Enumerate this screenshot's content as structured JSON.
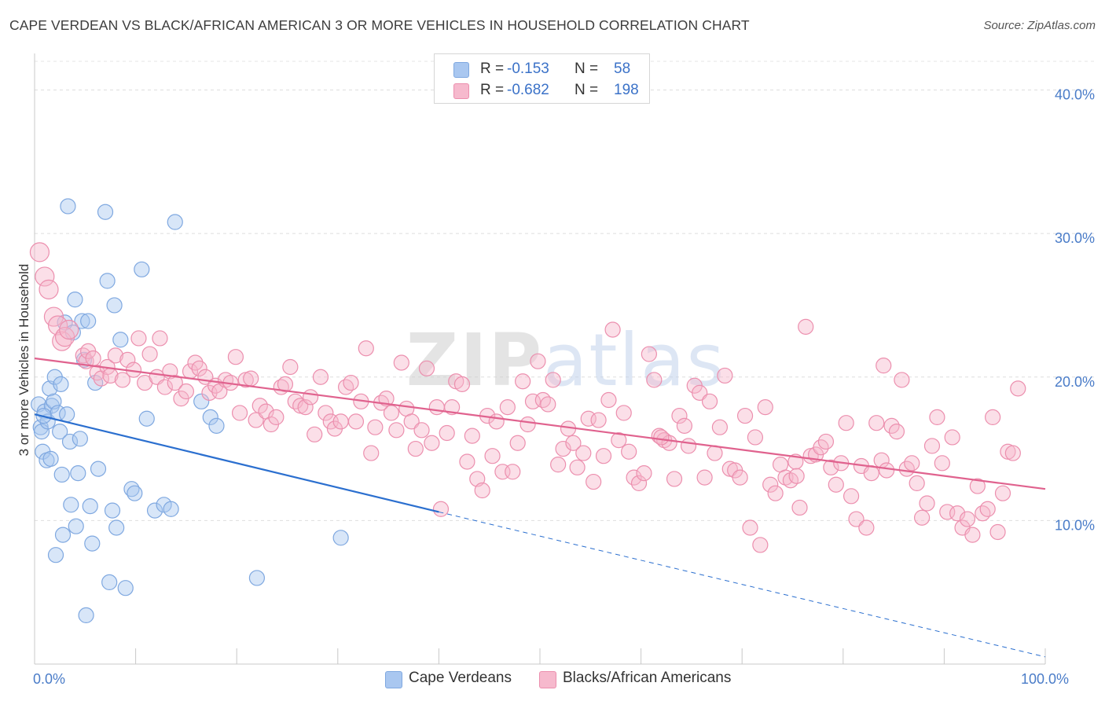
{
  "title": "CAPE VERDEAN VS BLACK/AFRICAN AMERICAN 3 OR MORE VEHICLES IN HOUSEHOLD CORRELATION CHART",
  "source": "Source: ZipAtlas.com",
  "watermark": "ZIPatlas",
  "legend": {
    "rows": [
      {
        "r_label": "R =",
        "r_value": "-0.153",
        "n_label": "N =",
        "n_value": "58",
        "color": "#a9c7f0",
        "border": "#7fa8e0"
      },
      {
        "r_label": "R =",
        "r_value": "-0.682",
        "n_label": "N =",
        "n_value": "198",
        "color": "#f6b9cd",
        "border": "#ec8fae"
      }
    ]
  },
  "bottom_legend": [
    {
      "label": "Cape Verdeans",
      "color": "#a9c7f0",
      "border": "#7fa8e0"
    },
    {
      "label": "Blacks/African Americans",
      "color": "#f6b9cd",
      "border": "#ec8fae"
    }
  ],
  "chart_data": {
    "type": "scatter",
    "xlabel": "",
    "ylabel": "3 or more Vehicles in Household",
    "xlim": [
      0,
      100
    ],
    "ylim": [
      0,
      42
    ],
    "x_tick_labels": [
      {
        "value": 0,
        "label": "0.0%"
      },
      {
        "value": 100,
        "label": "100.0%"
      }
    ],
    "y_tick_labels": [
      {
        "value": 10,
        "label": "10.0%"
      },
      {
        "value": 20,
        "label": "20.0%"
      },
      {
        "value": 30,
        "label": "30.0%"
      },
      {
        "value": 40,
        "label": "40.0%"
      }
    ],
    "grid": true,
    "series": [
      {
        "name": "Cape Verdeans",
        "color": "#a9c7f0",
        "stroke": "#7fa8e0",
        "trend": {
          "x": [
            0,
            40
          ],
          "y": [
            17.4,
            10.6
          ],
          "extend_to": [
            100,
            0.5
          ],
          "color": "#2b6fcf"
        },
        "points": [
          [
            0.4,
            18.1
          ],
          [
            0.6,
            16.5
          ],
          [
            0.7,
            16.2
          ],
          [
            0.8,
            14.8
          ],
          [
            1.0,
            17.6
          ],
          [
            1.2,
            14.2
          ],
          [
            1.3,
            16.9
          ],
          [
            1.5,
            19.2
          ],
          [
            1.6,
            14.3
          ],
          [
            1.7,
            18.0
          ],
          [
            1.9,
            18.3
          ],
          [
            2.0,
            20.0
          ],
          [
            2.1,
            7.6
          ],
          [
            2.3,
            17.5
          ],
          [
            2.5,
            16.2
          ],
          [
            2.6,
            19.5
          ],
          [
            2.7,
            13.2
          ],
          [
            2.8,
            9.0
          ],
          [
            3.0,
            23.8
          ],
          [
            3.2,
            17.4
          ],
          [
            3.3,
            31.9
          ],
          [
            3.5,
            15.5
          ],
          [
            3.6,
            11.1
          ],
          [
            3.8,
            23.1
          ],
          [
            4.0,
            25.4
          ],
          [
            4.1,
            9.6
          ],
          [
            4.3,
            13.3
          ],
          [
            4.5,
            15.7
          ],
          [
            4.7,
            23.9
          ],
          [
            4.9,
            21.2
          ],
          [
            5.1,
            3.4
          ],
          [
            5.3,
            23.9
          ],
          [
            5.5,
            11.0
          ],
          [
            5.7,
            8.4
          ],
          [
            6.0,
            19.6
          ],
          [
            6.3,
            13.6
          ],
          [
            7.0,
            31.5
          ],
          [
            7.2,
            26.7
          ],
          [
            7.4,
            5.7
          ],
          [
            7.7,
            10.7
          ],
          [
            7.9,
            25.0
          ],
          [
            8.1,
            9.5
          ],
          [
            8.5,
            22.6
          ],
          [
            9.0,
            5.3
          ],
          [
            9.6,
            12.2
          ],
          [
            9.9,
            11.9
          ],
          [
            10.6,
            27.5
          ],
          [
            11.1,
            17.1
          ],
          [
            11.9,
            10.7
          ],
          [
            12.8,
            11.1
          ],
          [
            13.5,
            10.8
          ],
          [
            13.9,
            30.8
          ],
          [
            16.5,
            18.3
          ],
          [
            17.4,
            17.2
          ],
          [
            18.0,
            16.6
          ],
          [
            22.0,
            6.0
          ],
          [
            30.3,
            8.8
          ],
          [
            0.9,
            17.3
          ]
        ]
      },
      {
        "name": "Blacks/African Americans",
        "color": "#f6b9cd",
        "stroke": "#ec8fae",
        "trend": {
          "x": [
            0,
            100
          ],
          "y": [
            21.3,
            12.2
          ],
          "color": "#e0628e"
        },
        "points": [
          [
            0.5,
            28.7
          ],
          [
            1.0,
            27.0
          ],
          [
            1.4,
            26.1
          ],
          [
            1.9,
            24.2
          ],
          [
            2.3,
            23.6
          ],
          [
            2.7,
            22.5
          ],
          [
            3.0,
            22.8
          ],
          [
            3.4,
            23.3
          ],
          [
            4.8,
            21.5
          ],
          [
            5.1,
            21.1
          ],
          [
            5.3,
            21.8
          ],
          [
            5.8,
            21.3
          ],
          [
            6.2,
            20.3
          ],
          [
            6.6,
            19.9
          ],
          [
            7.2,
            20.7
          ],
          [
            7.5,
            20.1
          ],
          [
            8.0,
            21.5
          ],
          [
            8.7,
            19.8
          ],
          [
            9.2,
            21.2
          ],
          [
            9.8,
            20.5
          ],
          [
            10.3,
            22.7
          ],
          [
            10.9,
            19.6
          ],
          [
            11.4,
            21.6
          ],
          [
            12.1,
            20.0
          ],
          [
            12.4,
            22.7
          ],
          [
            12.9,
            19.3
          ],
          [
            13.4,
            20.4
          ],
          [
            13.9,
            19.6
          ],
          [
            14.5,
            18.5
          ],
          [
            15.0,
            19.0
          ],
          [
            15.4,
            20.4
          ],
          [
            15.9,
            21.0
          ],
          [
            16.3,
            20.6
          ],
          [
            16.9,
            20.0
          ],
          [
            17.3,
            18.9
          ],
          [
            17.9,
            19.4
          ],
          [
            18.3,
            19.0
          ],
          [
            18.9,
            19.8
          ],
          [
            19.4,
            19.6
          ],
          [
            19.9,
            21.4
          ],
          [
            20.3,
            17.5
          ],
          [
            20.9,
            19.8
          ],
          [
            21.4,
            19.9
          ],
          [
            21.9,
            17.0
          ],
          [
            22.3,
            18.0
          ],
          [
            22.9,
            17.6
          ],
          [
            23.4,
            16.7
          ],
          [
            23.9,
            17.2
          ],
          [
            24.4,
            19.3
          ],
          [
            24.8,
            19.5
          ],
          [
            25.3,
            20.7
          ],
          [
            25.8,
            18.3
          ],
          [
            26.3,
            18.0
          ],
          [
            26.8,
            17.9
          ],
          [
            27.3,
            18.6
          ],
          [
            27.7,
            16.0
          ],
          [
            28.3,
            20.0
          ],
          [
            28.8,
            17.5
          ],
          [
            29.3,
            16.9
          ],
          [
            29.7,
            16.4
          ],
          [
            30.3,
            16.9
          ],
          [
            30.8,
            19.3
          ],
          [
            31.3,
            19.6
          ],
          [
            31.8,
            16.9
          ],
          [
            32.3,
            18.3
          ],
          [
            32.8,
            22.0
          ],
          [
            33.3,
            14.7
          ],
          [
            33.7,
            16.5
          ],
          [
            34.3,
            18.2
          ],
          [
            34.8,
            18.5
          ],
          [
            35.3,
            17.5
          ],
          [
            35.8,
            16.3
          ],
          [
            36.3,
            21.0
          ],
          [
            36.8,
            17.8
          ],
          [
            37.3,
            16.9
          ],
          [
            37.7,
            15.0
          ],
          [
            38.3,
            16.3
          ],
          [
            38.8,
            20.6
          ],
          [
            39.3,
            15.4
          ],
          [
            39.8,
            17.9
          ],
          [
            40.2,
            10.8
          ],
          [
            40.8,
            16.1
          ],
          [
            41.3,
            17.9
          ],
          [
            41.7,
            19.7
          ],
          [
            42.3,
            19.5
          ],
          [
            42.8,
            14.1
          ],
          [
            43.3,
            15.9
          ],
          [
            43.8,
            12.9
          ],
          [
            44.3,
            12.1
          ],
          [
            44.8,
            17.3
          ],
          [
            45.3,
            14.5
          ],
          [
            45.7,
            16.9
          ],
          [
            46.3,
            13.4
          ],
          [
            46.8,
            17.9
          ],
          [
            47.3,
            13.4
          ],
          [
            47.8,
            15.4
          ],
          [
            48.3,
            19.7
          ],
          [
            48.8,
            16.7
          ],
          [
            49.3,
            18.3
          ],
          [
            49.8,
            21.1
          ],
          [
            50.3,
            18.4
          ],
          [
            50.8,
            18.1
          ],
          [
            51.3,
            19.8
          ],
          [
            51.8,
            13.9
          ],
          [
            52.3,
            15.0
          ],
          [
            52.8,
            16.4
          ],
          [
            53.3,
            15.4
          ],
          [
            53.7,
            13.7
          ],
          [
            54.3,
            14.7
          ],
          [
            54.8,
            17.1
          ],
          [
            55.3,
            12.7
          ],
          [
            55.8,
            17.0
          ],
          [
            56.3,
            14.5
          ],
          [
            56.8,
            18.4
          ],
          [
            57.2,
            23.3
          ],
          [
            57.8,
            15.6
          ],
          [
            58.3,
            17.5
          ],
          [
            58.8,
            14.8
          ],
          [
            59.3,
            13.0
          ],
          [
            59.8,
            12.6
          ],
          [
            60.3,
            13.3
          ],
          [
            60.8,
            21.6
          ],
          [
            61.3,
            19.8
          ],
          [
            61.8,
            15.9
          ],
          [
            62.3,
            15.6
          ],
          [
            62.8,
            15.4
          ],
          [
            63.3,
            12.9
          ],
          [
            63.8,
            17.3
          ],
          [
            64.3,
            16.6
          ],
          [
            64.7,
            15.2
          ],
          [
            65.3,
            19.4
          ],
          [
            65.8,
            18.9
          ],
          [
            66.3,
            13.0
          ],
          [
            66.8,
            18.3
          ],
          [
            67.3,
            14.7
          ],
          [
            67.8,
            16.5
          ],
          [
            68.3,
            20.1
          ],
          [
            68.8,
            13.6
          ],
          [
            69.3,
            13.5
          ],
          [
            69.8,
            13.0
          ],
          [
            70.3,
            17.3
          ],
          [
            70.8,
            9.5
          ],
          [
            71.3,
            15.8
          ],
          [
            71.8,
            8.3
          ],
          [
            72.3,
            17.9
          ],
          [
            72.8,
            12.5
          ],
          [
            73.3,
            11.9
          ],
          [
            73.8,
            13.9
          ],
          [
            74.3,
            13.0
          ],
          [
            74.8,
            12.8
          ],
          [
            75.3,
            14.1
          ],
          [
            75.7,
            10.9
          ],
          [
            76.3,
            23.5
          ],
          [
            76.8,
            14.5
          ],
          [
            77.3,
            14.6
          ],
          [
            77.8,
            15.1
          ],
          [
            78.3,
            15.5
          ],
          [
            78.8,
            13.7
          ],
          [
            79.3,
            12.5
          ],
          [
            79.8,
            14.0
          ],
          [
            80.3,
            16.8
          ],
          [
            80.8,
            11.7
          ],
          [
            81.3,
            10.1
          ],
          [
            81.8,
            13.8
          ],
          [
            82.3,
            9.5
          ],
          [
            82.8,
            13.3
          ],
          [
            83.3,
            16.8
          ],
          [
            83.8,
            14.2
          ],
          [
            84.3,
            13.5
          ],
          [
            84.8,
            16.6
          ],
          [
            85.3,
            16.2
          ],
          [
            85.8,
            19.8
          ],
          [
            86.3,
            13.6
          ],
          [
            86.8,
            14.0
          ],
          [
            87.3,
            12.6
          ],
          [
            87.8,
            10.2
          ],
          [
            88.3,
            11.2
          ],
          [
            88.8,
            15.2
          ],
          [
            89.3,
            17.2
          ],
          [
            89.8,
            14.0
          ],
          [
            90.3,
            10.6
          ],
          [
            90.8,
            15.8
          ],
          [
            91.3,
            10.5
          ],
          [
            91.8,
            9.5
          ],
          [
            92.3,
            10.1
          ],
          [
            92.8,
            9.0
          ],
          [
            93.3,
            12.4
          ],
          [
            93.8,
            10.5
          ],
          [
            94.3,
            10.8
          ],
          [
            94.8,
            17.2
          ],
          [
            95.3,
            9.2
          ],
          [
            95.8,
            11.9
          ],
          [
            96.3,
            14.8
          ],
          [
            96.8,
            14.7
          ],
          [
            97.3,
            19.2
          ],
          [
            75.4,
            13.1
          ],
          [
            62.0,
            15.8
          ],
          [
            84.0,
            20.8
          ]
        ]
      }
    ]
  }
}
